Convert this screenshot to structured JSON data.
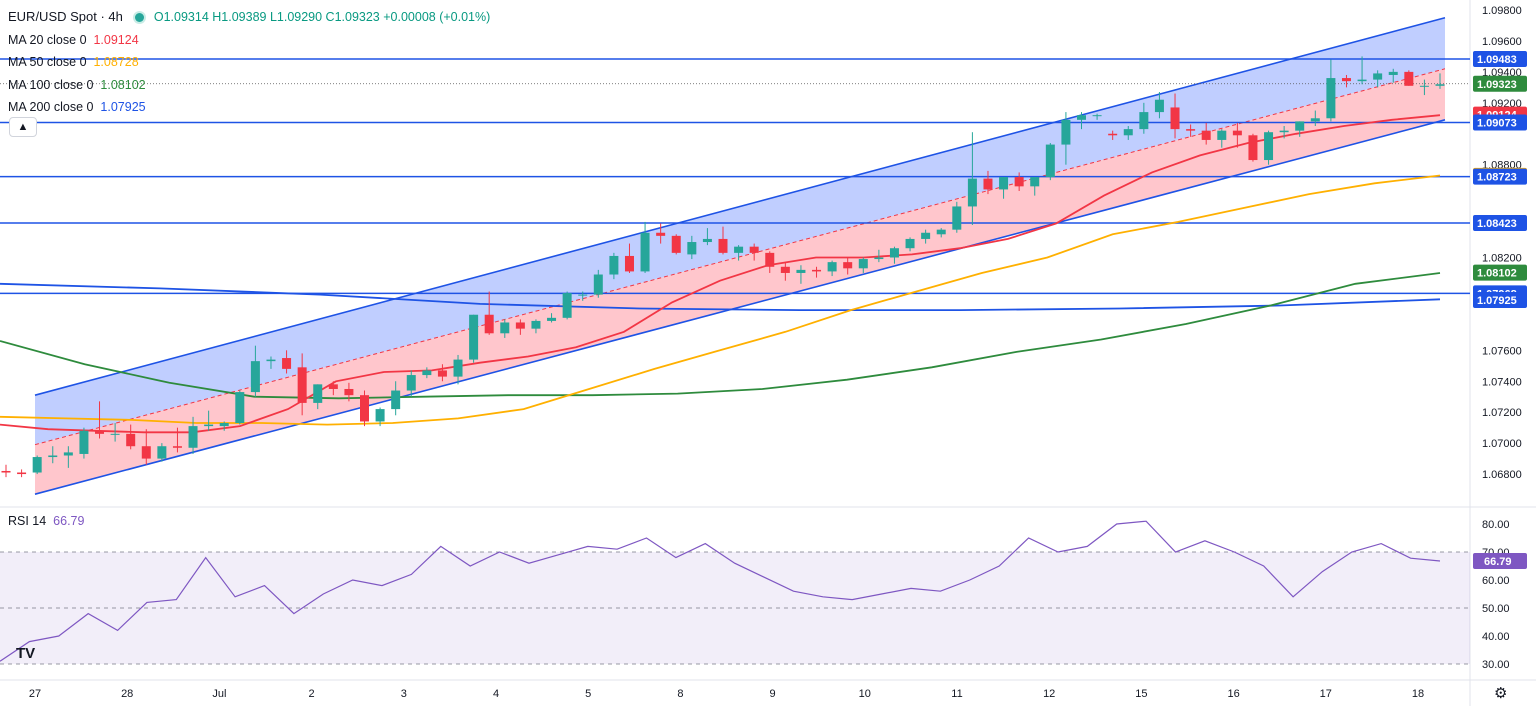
{
  "header": {
    "symbol": "EUR/USD Spot · 4h",
    "ohlc": "O1.09314  H1.09389  L1.09290  C1.09323  +0.00008 (+0.01%)",
    "indicators": [
      {
        "label": "MA 20 close 0",
        "value": "1.09124",
        "color": "#f23645"
      },
      {
        "label": "MA 50 close 0",
        "value": "1.08728",
        "color": "#ffb000"
      },
      {
        "label": "MA 100 close 0",
        "value": "1.08102",
        "color": "#2e8b3d"
      },
      {
        "label": "MA 200 close 0",
        "value": "1.07925",
        "color": "#1e53e5"
      }
    ],
    "collapse_icon": "chevron-up-icon"
  },
  "rsi": {
    "label": "RSI 14",
    "value": "66.79",
    "color": "#7e57c2"
  },
  "logo_text": "TV",
  "settings_icon": "gear-icon",
  "chart_data": {
    "type": "candlestick",
    "title": "EUR/USD Spot · 4h",
    "x_labels": [
      "27",
      "28",
      "Jul",
      "2",
      "3",
      "4",
      "5",
      "8",
      "9",
      "10",
      "11",
      "12",
      "15",
      "16",
      "17",
      "18"
    ],
    "ylim": [
      1.066,
      1.098
    ],
    "y_ticks": [
      "1.09800",
      "1.09600",
      "1.09400",
      "1.09200",
      "1.08800",
      "1.08200",
      "1.07600",
      "1.07400",
      "1.07200",
      "1.07000",
      "1.06800"
    ],
    "colors": {
      "up": "#26a69a",
      "down": "#f23645",
      "hline": "#1e53e5",
      "channel_upper_fill": "#b9c9ff",
      "channel_lower_fill": "#ffc0c6"
    },
    "horizontal_levels": [
      1.09483,
      1.09073,
      1.08723,
      1.08423,
      1.07968
    ],
    "price_labels": [
      {
        "text": "1.09483",
        "value": 1.09483,
        "color": "#1e53e5"
      },
      {
        "text": "1.09323",
        "value": 1.09323,
        "color": "#2e8b3d"
      },
      {
        "text": "1.09124",
        "value": 1.09124,
        "color": "#f23645"
      },
      {
        "text": "1.09073",
        "value": 1.09073,
        "color": "#1e53e5"
      },
      {
        "text": "1.08728",
        "value": 1.08728,
        "color": "#ffb000"
      },
      {
        "text": "1.08723",
        "value": 1.08723,
        "color": "#1e53e5"
      },
      {
        "text": "1.08423",
        "value": 1.08423,
        "color": "#1e53e5"
      },
      {
        "text": "1.08102",
        "value": 1.08102,
        "color": "#2e8b3d"
      },
      {
        "text": "1.07968",
        "value": 1.07968,
        "color": "#1e53e5"
      },
      {
        "text": "1.07925",
        "value": 1.07925,
        "color": "#1e53e5"
      }
    ],
    "last_price": 1.09323,
    "channel": {
      "upper": [
        [
          1.0731,
          1.0975
        ]
      ],
      "lower": [
        [
          1.0667,
          1.0909
        ]
      ]
    },
    "candles": [
      [
        1.0682,
        1.0686,
        1.0678,
        1.0681
      ],
      [
        1.0681,
        1.0683,
        1.0678,
        1.068
      ],
      [
        1.0681,
        1.0692,
        1.068,
        1.0691
      ],
      [
        1.0691,
        1.0698,
        1.0687,
        1.0692
      ],
      [
        1.0692,
        1.0698,
        1.0684,
        1.0694
      ],
      [
        1.0693,
        1.071,
        1.069,
        1.0708
      ],
      [
        1.0708,
        1.0727,
        1.0703,
        1.0706
      ],
      [
        1.0706,
        1.0713,
        1.0701,
        1.0706
      ],
      [
        1.0706,
        1.0712,
        1.0696,
        1.0698
      ],
      [
        1.0698,
        1.0709,
        1.0686,
        1.069
      ],
      [
        1.069,
        1.07,
        1.0688,
        1.0698
      ],
      [
        1.0698,
        1.071,
        1.0694,
        1.0697
      ],
      [
        1.0697,
        1.0717,
        1.0693,
        1.0711
      ],
      [
        1.0711,
        1.0721,
        1.0708,
        1.0712
      ],
      [
        1.0711,
        1.0714,
        1.0708,
        1.0713
      ],
      [
        1.0713,
        1.0734,
        1.0712,
        1.0733
      ],
      [
        1.0733,
        1.0763,
        1.073,
        1.0753
      ],
      [
        1.0753,
        1.0756,
        1.0748,
        1.0754
      ],
      [
        1.0755,
        1.076,
        1.0745,
        1.0748
      ],
      [
        1.0749,
        1.0758,
        1.0718,
        1.0726
      ],
      [
        1.0726,
        1.0738,
        1.0722,
        1.0738
      ],
      [
        1.0738,
        1.074,
        1.0731,
        1.0735
      ],
      [
        1.0735,
        1.0739,
        1.0727,
        1.0731
      ],
      [
        1.0731,
        1.0734,
        1.0711,
        1.0714
      ],
      [
        1.0714,
        1.0723,
        1.0711,
        1.0722
      ],
      [
        1.0722,
        1.074,
        1.0718,
        1.0734
      ],
      [
        1.0734,
        1.0747,
        1.073,
        1.0744
      ],
      [
        1.0744,
        1.0749,
        1.0742,
        1.0747
      ],
      [
        1.0747,
        1.0751,
        1.074,
        1.0743
      ],
      [
        1.0743,
        1.0757,
        1.0738,
        1.0754
      ],
      [
        1.0754,
        1.0783,
        1.0752,
        1.0783
      ],
      [
        1.0783,
        1.0798,
        1.077,
        1.0771
      ],
      [
        1.0771,
        1.078,
        1.0768,
        1.0778
      ],
      [
        1.0778,
        1.078,
        1.077,
        1.0774
      ],
      [
        1.0774,
        1.078,
        1.0771,
        1.0779
      ],
      [
        1.0779,
        1.0784,
        1.0778,
        1.0781
      ],
      [
        1.0781,
        1.0798,
        1.078,
        1.0797
      ],
      [
        1.0796,
        1.0798,
        1.0792,
        1.0796
      ],
      [
        1.0796,
        1.0812,
        1.0794,
        1.0809
      ],
      [
        1.0809,
        1.0823,
        1.0806,
        1.0821
      ],
      [
        1.0821,
        1.0829,
        1.081,
        1.0811
      ],
      [
        1.0811,
        1.0843,
        1.081,
        1.0836
      ],
      [
        1.0836,
        1.0842,
        1.0829,
        1.0834
      ],
      [
        1.0834,
        1.0835,
        1.0822,
        1.0823
      ],
      [
        1.0822,
        1.0834,
        1.0819,
        1.083
      ],
      [
        1.083,
        1.0839,
        1.0828,
        1.0832
      ],
      [
        1.0832,
        1.084,
        1.0822,
        1.0823
      ],
      [
        1.0823,
        1.0828,
        1.0818,
        1.0827
      ],
      [
        1.0827,
        1.0829,
        1.0818,
        1.0823
      ],
      [
        1.0823,
        1.0824,
        1.081,
        1.0814
      ],
      [
        1.0814,
        1.0817,
        1.0805,
        1.081
      ],
      [
        1.081,
        1.0815,
        1.0803,
        1.0812
      ],
      [
        1.0812,
        1.0814,
        1.0807,
        1.0811
      ],
      [
        1.0811,
        1.0818,
        1.0808,
        1.0817
      ],
      [
        1.0817,
        1.082,
        1.0809,
        1.0813
      ],
      [
        1.0813,
        1.082,
        1.081,
        1.0819
      ],
      [
        1.0819,
        1.0825,
        1.0817,
        1.082
      ],
      [
        1.082,
        1.0827,
        1.0816,
        1.0826
      ],
      [
        1.0826,
        1.0833,
        1.0824,
        1.0832
      ],
      [
        1.0832,
        1.0838,
        1.0829,
        1.0836
      ],
      [
        1.0835,
        1.0839,
        1.0833,
        1.0838
      ],
      [
        1.0838,
        1.0856,
        1.0836,
        1.0853
      ],
      [
        1.0853,
        1.0901,
        1.0841,
        1.0871
      ],
      [
        1.0871,
        1.0876,
        1.0861,
        1.0864
      ],
      [
        1.0864,
        1.0872,
        1.0858,
        1.0872
      ],
      [
        1.0872,
        1.0875,
        1.0863,
        1.0866
      ],
      [
        1.0866,
        1.0872,
        1.086,
        1.0872
      ],
      [
        1.0872,
        1.0894,
        1.087,
        1.0893
      ],
      [
        1.0893,
        1.0914,
        1.088,
        1.0909
      ],
      [
        1.0909,
        1.0914,
        1.0903,
        1.0912
      ],
      [
        1.0912,
        1.0913,
        1.0909,
        1.0912
      ],
      [
        1.09,
        1.0902,
        1.0896,
        1.0899
      ],
      [
        1.0899,
        1.0905,
        1.0896,
        1.0903
      ],
      [
        1.0903,
        1.092,
        1.09,
        1.0914
      ],
      [
        1.0914,
        1.0927,
        1.091,
        1.0922
      ],
      [
        1.0917,
        1.0926,
        1.0897,
        1.0903
      ],
      [
        1.0903,
        1.0906,
        1.0898,
        1.0902
      ],
      [
        1.0902,
        1.0907,
        1.0893,
        1.0896
      ],
      [
        1.0896,
        1.0903,
        1.0891,
        1.0902
      ],
      [
        1.0902,
        1.0907,
        1.0891,
        1.0899
      ],
      [
        1.0899,
        1.09,
        1.0882,
        1.0883
      ],
      [
        1.0883,
        1.0902,
        1.088,
        1.0901
      ],
      [
        1.0901,
        1.0905,
        1.0897,
        1.0902
      ],
      [
        1.0902,
        1.0908,
        1.0898,
        1.0908
      ],
      [
        1.0908,
        1.0915,
        1.0905,
        1.091
      ],
      [
        1.091,
        1.0948,
        1.0908,
        1.0936
      ],
      [
        1.0936,
        1.0938,
        1.093,
        1.0934
      ],
      [
        1.0934,
        1.095,
        1.0932,
        1.0935
      ],
      [
        1.0935,
        1.0941,
        1.093,
        1.0939
      ],
      [
        1.0938,
        1.0942,
        1.0933,
        1.094
      ],
      [
        1.094,
        1.0941,
        1.0931,
        1.0931
      ],
      [
        1.0931,
        1.0935,
        1.0925,
        1.0931
      ],
      [
        1.0931,
        1.0939,
        1.0929,
        1.0932
      ]
    ],
    "ma20": [
      [
        1.0712,
        1.0709,
        1.0708,
        1.0707,
        1.0707,
        1.0711,
        1.0722,
        1.074,
        1.0746,
        1.0747,
        1.0752,
        1.0756,
        1.0762,
        1.0772,
        1.0791,
        1.0805,
        1.0815,
        1.082,
        1.082,
        1.0822,
        1.0826,
        1.0832,
        1.0842,
        1.086,
        1.0875,
        1.0886,
        1.0894,
        1.09,
        1.0905,
        1.0909,
        1.0912
      ]
    ],
    "ma50": [
      [
        1.0717,
        1.0716,
        1.0715,
        1.0713,
        1.0713,
        1.0712,
        1.0713,
        1.0716,
        1.0722,
        1.0735,
        1.0748,
        1.076,
        1.0772,
        1.0786,
        1.0798,
        1.081,
        1.082,
        1.0835,
        1.0843,
        1.0852,
        1.0861,
        1.0868,
        1.0873
      ]
    ],
    "ma100": [
      [
        1.0766,
        1.0751,
        1.0739,
        1.073,
        1.0729,
        1.073,
        1.0731,
        1.0731,
        1.0732,
        1.0735,
        1.0741,
        1.0749,
        1.0759,
        1.0767,
        1.0777,
        1.0789,
        1.0803,
        1.081
      ]
    ],
    "ma200": [
      [
        1.0803,
        1.08,
        1.0796,
        1.079,
        1.0787,
        1.0786,
        1.0786,
        1.0787,
        1.0789,
        1.0793
      ]
    ],
    "rsi_14": {
      "ylim": [
        25,
        85
      ],
      "y_ticks": [
        "80.00",
        "70.00",
        "60.00",
        "50.00",
        "40.00",
        "30.00"
      ],
      "levels": [
        70,
        50,
        30
      ],
      "values": [
        31,
        38,
        40,
        48,
        42,
        52,
        53,
        68,
        54,
        58,
        48,
        55,
        60,
        58,
        62,
        72,
        65,
        70,
        66,
        69,
        72,
        71,
        75,
        68,
        73,
        66,
        61,
        56,
        54,
        53,
        55,
        57,
        56,
        60,
        65,
        75,
        70,
        72,
        80,
        81,
        70,
        74,
        70,
        65,
        54,
        63,
        70,
        73,
        67.8,
        66.79
      ]
    }
  }
}
